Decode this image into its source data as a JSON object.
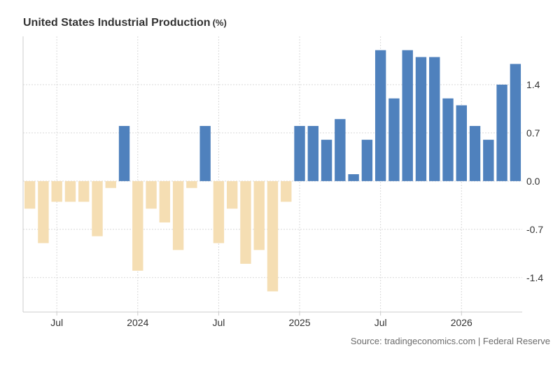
{
  "header": {
    "title": "United States Industrial Production",
    "unit": "(%)"
  },
  "source": "Source: tradingeconomics.com | Federal Reserve",
  "colors": {
    "positive": "#4f81bd",
    "negative": "#f5deb3",
    "grid": "#d9d9d9",
    "axis": "#cccccc"
  },
  "chart_data": {
    "type": "bar",
    "title": "United States Industrial Production",
    "xlabel": "",
    "ylabel": "",
    "ylim": [
      -1.9,
      2.1
    ],
    "y_ticks": [
      1.4,
      0.7,
      0.0,
      -0.7,
      -1.4
    ],
    "y_tick_labels": [
      "1.4",
      "0.7",
      "0.0",
      "-0.7",
      "-1.4"
    ],
    "x_tick_labels": [
      "Jul",
      "2024",
      "Jul",
      "2025",
      "Jul",
      "2026"
    ],
    "x_tick_categories": [
      "2023-07",
      "2024-01",
      "2024-07",
      "2025-01",
      "2025-07",
      "2026-01"
    ],
    "grid": true,
    "legend": "none",
    "categories": [
      "2023-05",
      "2023-06",
      "2023-07",
      "2023-08",
      "2023-09",
      "2023-10",
      "2023-11",
      "2023-12",
      "2024-01",
      "2024-02",
      "2024-03",
      "2024-04",
      "2024-05",
      "2024-06",
      "2024-07",
      "2024-08",
      "2024-09",
      "2024-10",
      "2024-11",
      "2024-12",
      "2025-01",
      "2025-02",
      "2025-03",
      "2025-04",
      "2025-05",
      "2025-06",
      "2025-07",
      "2025-08",
      "2025-09",
      "2025-10",
      "2025-11",
      "2025-12",
      "2026-01",
      "2026-02",
      "2026-03",
      "2026-04",
      "2026-05"
    ],
    "values": [
      -0.4,
      -0.9,
      -0.3,
      -0.3,
      -0.3,
      -0.8,
      -0.1,
      0.8,
      -1.3,
      -0.4,
      -0.6,
      -1.0,
      -0.1,
      0.8,
      -0.9,
      -0.4,
      -1.2,
      -1.0,
      -1.6,
      -0.3,
      0.8,
      0.8,
      0.6,
      0.9,
      0.1,
      0.6,
      1.9,
      1.2,
      1.9,
      1.8,
      1.8,
      1.2,
      1.1,
      0.8,
      0.6,
      1.4,
      1.7
    ]
  }
}
